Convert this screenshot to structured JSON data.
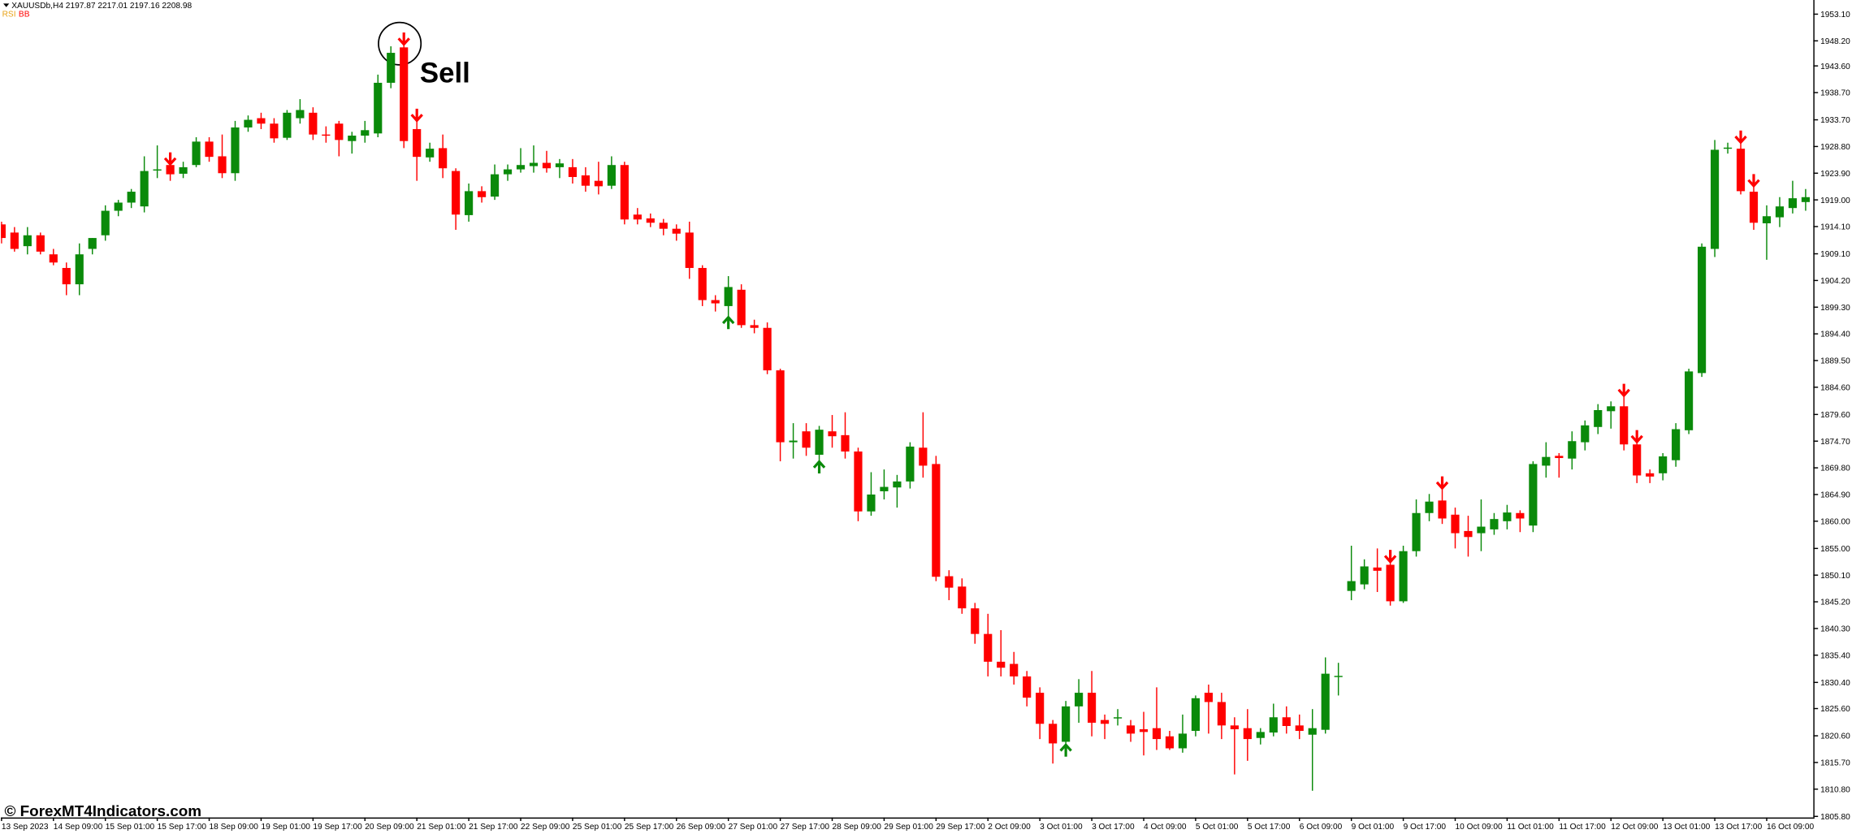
{
  "chart_data": {
    "type": "candlestick",
    "header": "XAUUSDb,H4  2197.87 2217.01 2197.16 2208.98",
    "indicators": [
      {
        "name": "RSI",
        "color": "#e8a317"
      },
      {
        "name": "BB",
        "color": "#ff0000"
      }
    ],
    "annotation": "Sell",
    "watermark": "© ForexMT4Indicators.com",
    "up_color": "#0a8a0a",
    "down_color": "#ff0000",
    "categories": [
      "13 Sep 2023",
      null,
      null,
      null,
      "14 Sep 09:00",
      null,
      null,
      null,
      "15 Sep 01:00",
      null,
      null,
      null,
      "15 Sep 17:00",
      null,
      null,
      null,
      "18 Sep 09:00",
      null,
      null,
      null,
      "19 Sep 01:00",
      null,
      null,
      null,
      "19 Sep 17:00",
      null,
      null,
      null,
      "20 Sep 09:00",
      null,
      null,
      null,
      "21 Sep 01:00",
      null,
      null,
      null,
      "21 Sep 17:00",
      null,
      null,
      null,
      "22 Sep 09:00",
      null,
      null,
      null,
      "25 Sep 01:00",
      null,
      null,
      null,
      "25 Sep 17:00",
      null,
      null,
      null,
      "26 Sep 09:00",
      null,
      null,
      null,
      "27 Sep 01:00",
      null,
      null,
      null,
      "27 Sep 17:00",
      null,
      null,
      null,
      "28 Sep 09:00",
      null,
      null,
      null,
      "29 Sep 01:00",
      null,
      null,
      null,
      "29 Sep 17:00",
      null,
      null,
      null,
      "2 Oct 09:00",
      null,
      null,
      null,
      "3 Oct 01:00",
      null,
      null,
      null,
      "3 Oct 17:00",
      null,
      null,
      null,
      "4 Oct 09:00",
      null,
      null,
      null,
      "5 Oct 01:00",
      null,
      null,
      null,
      "5 Oct 17:00",
      null,
      null,
      null,
      "6 Oct 09:00",
      null,
      null,
      null,
      "9 Oct 01:00",
      null,
      null,
      null,
      "9 Oct 17:00",
      null,
      null,
      null,
      "10 Oct 09:00",
      null,
      null,
      null,
      "11 Oct 01:00",
      null,
      null,
      null,
      "11 Oct 17:00",
      null,
      null,
      null,
      "12 Oct 09:00",
      null,
      null,
      null,
      "13 Oct 01:00",
      null,
      null,
      null,
      "13 Oct 17:00",
      null,
      null,
      null,
      "16 Oct 09:00",
      null,
      null,
      null
    ],
    "open": [
      1914.5,
      1913,
      1910.5,
      1912.5,
      1909,
      1906.5,
      1903.5,
      1910,
      1912.5,
      1917,
      1918.5,
      1917.8,
      1924.5,
      1925.4,
      1923.8,
      1925.4,
      1929.7,
      1927,
      1923.9,
      1932.3,
      1934,
      1933,
      1930.4,
      1934,
      1935,
      1931,
      1933,
      1929.8,
      1930.8,
      1931.2,
      1940.5,
      1947,
      1932,
      1926.8,
      1928.5,
      1924.3,
      1916.2,
      1920.6,
      1919.6,
      1923.7,
      1924.6,
      1925.2,
      1925.8,
      1925,
      1925,
      1923.5,
      1922.5,
      1921.6,
      1925.4,
      1916.3,
      1915.6,
      1914.8,
      1913.7,
      1913,
      1906.5,
      1900.6,
      1899.5,
      1902.5,
      1896,
      1895.5,
      1887.7,
      1874.5,
      1876.5,
      1872.2,
      1876.5,
      1875.8,
      1872.8,
      1861.8,
      1865.5,
      1866.2,
      1867.3,
      1873.5,
      1870.5,
      1849.9,
      1848,
      1844,
      1839.3,
      1834.2,
      1833.8,
      1831.5,
      1828.5,
      1822.8,
      1819.5,
      1826,
      1828.5,
      1823.5,
      1823.8,
      1822.5,
      1821.8,
      1822,
      1820.5,
      1818.3,
      1821.5,
      1828.5,
      1826.8,
      1822.5,
      1822,
      1820.2,
      1821.2,
      1824,
      1822.5,
      1820.8,
      1821.7,
      1831.5,
      1847.2,
      1848.4,
      1851.5,
      1852,
      1845.3,
      1854.5,
      1861.5,
      1863.8,
      1861.2,
      1858.2,
      1857.8,
      1858.5,
      1860,
      1861.5,
      1859.2,
      1870.2,
      1872,
      1871.5,
      1874.5,
      1877.3,
      1880.2,
      1881.1,
      1874.1,
      1868.8,
      1868.8,
      1871.2,
      1876.7,
      1887.2,
      1910,
      1928.5,
      1928.4,
      1920.5,
      1914.7,
      1915.8,
      1917.5,
      1918.6
    ],
    "high": [
      1915,
      1914,
      1914,
      1913,
      1910,
      1907.5,
      1911,
      1912,
      1918,
      1919,
      1921,
      1927,
      1929,
      1926,
      1926,
      1930.5,
      1930.5,
      1931,
      1933.5,
      1934.5,
      1935,
      1934,
      1935.5,
      1937.5,
      1936,
      1932.5,
      1933.5,
      1931.5,
      1933.5,
      1942,
      1947.2,
      1948,
      1934,
      1929.5,
      1931,
      1924.8,
      1922,
      1921.5,
      1925.5,
      1925.5,
      1928.5,
      1929,
      1928,
      1926.5,
      1926.5,
      1925,
      1926,
      1927,
      1926,
      1917.5,
      1916.5,
      1915.5,
      1914.5,
      1915,
      1907,
      1901.5,
      1905,
      1903.5,
      1897,
      1896.5,
      1888,
      1878,
      1878,
      1877.5,
      1879.5,
      1880,
      1873.5,
      1869,
      1869.5,
      1868.5,
      1874.5,
      1880,
      1872,
      1851,
      1849.5,
      1845,
      1843,
      1840,
      1836,
      1832.5,
      1829.5,
      1823.5,
      1827,
      1831,
      1832.5,
      1824.5,
      1825.5,
      1823.5,
      1825,
      1829.5,
      1821.5,
      1824.5,
      1828,
      1830,
      1828.5,
      1824,
      1825.5,
      1822,
      1826.5,
      1826,
      1824.5,
      1825.5,
      1835,
      1834,
      1855.5,
      1853,
      1855,
      1853,
      1855.5,
      1864,
      1865,
      1866.5,
      1862.5,
      1861,
      1864,
      1861.5,
      1863,
      1862,
      1871,
      1874.5,
      1872.5,
      1876.5,
      1878.5,
      1881.5,
      1882,
      1883.5,
      1875,
      1869.5,
      1872.5,
      1878,
      1888,
      1911,
      1930,
      1929.5,
      1930,
      1922,
      1918,
      1919.5,
      1922.5,
      1921
    ],
    "low": [
      1911,
      1909.5,
      1909,
      1909,
      1907,
      1901.5,
      1901.5,
      1909,
      1911.5,
      1916,
      1917.5,
      1916.7,
      1923,
      1922.5,
      1923,
      1925,
      1926,
      1923,
      1922.5,
      1931.5,
      1932,
      1929.5,
      1930,
      1933,
      1930,
      1929.5,
      1927,
      1927.5,
      1929.5,
      1930.5,
      1939.5,
      1928.5,
      1922.5,
      1926,
      1923,
      1913.5,
      1915,
      1918.5,
      1919,
      1922.5,
      1924,
      1924,
      1924,
      1923,
      1922,
      1920.5,
      1920,
      1921,
      1914.5,
      1914.5,
      1914,
      1912.5,
      1911.5,
      1904.5,
      1899.5,
      1898.5,
      1897,
      1895.5,
      1894.5,
      1887,
      1871,
      1871.5,
      1872,
      1870.5,
      1873.5,
      1871.5,
      1860,
      1861,
      1864,
      1862.5,
      1866,
      1868,
      1849,
      1845.5,
      1843,
      1837.5,
      1831.5,
      1831.5,
      1830,
      1826,
      1820,
      1815.5,
      1818.5,
      1823,
      1820.5,
      1820,
      1822.5,
      1819.5,
      1817,
      1818,
      1818,
      1817.5,
      1820.5,
      1821,
      1820,
      1813.5,
      1816,
      1819,
      1820.5,
      1821,
      1820,
      1810.5,
      1821,
      1828,
      1845.5,
      1847.5,
      1847,
      1844.5,
      1845,
      1853.5,
      1860,
      1859.5,
      1855,
      1853.5,
      1854.5,
      1857.5,
      1858.5,
      1858,
      1858,
      1868,
      1868,
      1869.5,
      1873,
      1876,
      1877,
      1873,
      1867,
      1867,
      1867.5,
      1870,
      1876,
      1886.5,
      1908.5,
      1927.5,
      1920,
      1913.5,
      1908,
      1914,
      1916.5,
      1917
    ],
    "close": [
      1912,
      1910,
      1912.5,
      1909.5,
      1907.5,
      1903.5,
      1909,
      1912,
      1917,
      1918.5,
      1920.5,
      1924.3,
      1924.6,
      1923.7,
      1925,
      1929.7,
      1926.9,
      1923.9,
      1932.3,
      1933.7,
      1933,
      1930.3,
      1935,
      1935.5,
      1931,
      1930.8,
      1930,
      1930.8,
      1931.8,
      1940.5,
      1946,
      1929.8,
      1926.9,
      1928.4,
      1924.8,
      1916.3,
      1920.6,
      1919.5,
      1923.7,
      1924.6,
      1925.4,
      1925.8,
      1924.8,
      1925.7,
      1923.2,
      1921.6,
      1921.5,
      1925.4,
      1915.4,
      1915.4,
      1914.8,
      1913.7,
      1912.8,
      1906.5,
      1900.6,
      1900,
      1903,
      1896,
      1895.5,
      1887.7,
      1874.5,
      1874.8,
      1873.5,
      1876.8,
      1875.6,
      1872.8,
      1861.8,
      1864.9,
      1866.3,
      1867.3,
      1873.7,
      1870.2,
      1849.8,
      1847.8,
      1844,
      1839.3,
      1834.2,
      1833.1,
      1831.5,
      1827.6,
      1822.8,
      1819.2,
      1826,
      1828.5,
      1823,
      1822.8,
      1824,
      1821,
      1821.3,
      1820,
      1818.3,
      1821,
      1827.5,
      1826.8,
      1822.5,
      1821.8,
      1820,
      1821.3,
      1824,
      1822.4,
      1821.5,
      1822,
      1832,
      1831.6,
      1849,
      1851.7,
      1850.9,
      1845.3,
      1854.5,
      1861.5,
      1863.6,
      1860.5,
      1857.8,
      1857.1,
      1859,
      1860.4,
      1861.6,
      1860.5,
      1870.5,
      1871.8,
      1871.6,
      1874.7,
      1877.6,
      1880.4,
      1881.1,
      1874.1,
      1868.4,
      1868.2,
      1871.9,
      1876.9,
      1887.5,
      1910.4,
      1928.2,
      1928.6,
      1920.6,
      1914.8,
      1916,
      1917.8,
      1919.3,
      1919.5
    ],
    "sell_signals": [
      13,
      31,
      32,
      107,
      111,
      125,
      126,
      134,
      135
    ],
    "buy_signals": [
      56,
      63,
      82
    ],
    "ylim": [
      1805.6,
      1955.7
    ],
    "yticks": [
      {
        "value": 1953.1,
        "label": "1953.10"
      },
      {
        "value": 1948.2,
        "label": "1948.20"
      },
      {
        "value": 1943.6,
        "label": "1943.60"
      },
      {
        "value": 1938.7,
        "label": "1938.70"
      },
      {
        "value": 1933.7,
        "label": "1933.70"
      },
      {
        "value": 1928.8,
        "label": "1928.80"
      },
      {
        "value": 1923.9,
        "label": "1923.90"
      },
      {
        "value": 1919,
        "label": "1919.00"
      },
      {
        "value": 1914.1,
        "label": "1914.10"
      },
      {
        "value": 1909.1,
        "label": "1909.10"
      },
      {
        "value": 1904.2,
        "label": "1904.20"
      },
      {
        "value": 1899.3,
        "label": "1899.30"
      },
      {
        "value": 1894.4,
        "label": "1894.40"
      },
      {
        "value": 1889.5,
        "label": "1889.50"
      },
      {
        "value": 1884.6,
        "label": "1884.60"
      },
      {
        "value": 1879.6,
        "label": "1879.60"
      },
      {
        "value": 1874.7,
        "label": "1874.70"
      },
      {
        "value": 1869.8,
        "label": "1869.80"
      },
      {
        "value": 1864.9,
        "label": "1864.90"
      },
      {
        "value": 1860,
        "label": "1860.00"
      },
      {
        "value": 1855,
        "label": "1855.00"
      },
      {
        "value": 1850.1,
        "label": "1850.10"
      },
      {
        "value": 1845.2,
        "label": "1845.20"
      },
      {
        "value": 1840.3,
        "label": "1840.30"
      },
      {
        "value": 1835.4,
        "label": "1835.40"
      },
      {
        "value": 1830.4,
        "label": "1830.40"
      },
      {
        "value": 1825.6,
        "label": "1825.60"
      },
      {
        "value": 1820.6,
        "label": "1820.60"
      },
      {
        "value": 1815.7,
        "label": "1815.70"
      },
      {
        "value": 1810.8,
        "label": "1810.80"
      },
      {
        "value": 1805.8,
        "label": "1805.80"
      }
    ],
    "grid": false
  }
}
